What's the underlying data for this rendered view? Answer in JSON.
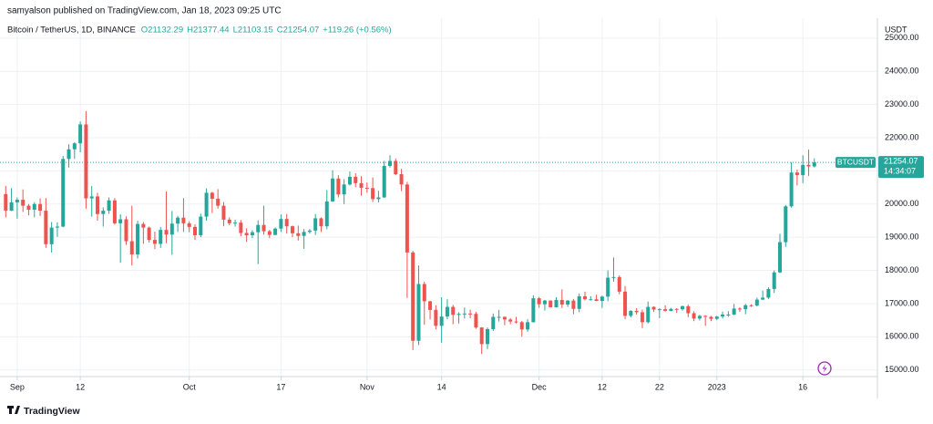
{
  "chart_data": {
    "type": "candlestick",
    "publisher": "samyalson published on TradingView.com, Jan 18, 2023 09:25 UTC",
    "title": "Bitcoin / TetherUS, 1D, BINANCE",
    "legend_values": [
      "O21132.29",
      "H21377.44",
      "L21103.15",
      "C21254.07",
      "+119.26 (+0.56%)"
    ],
    "y_axis_unit": "USDT",
    "symbol_tag": "BTCUSDT",
    "last_price_label": "21254.07",
    "countdown": "14:34:07",
    "brand": "TradingView",
    "up_color": "#26a69a",
    "down_color": "#ef5350",
    "grid": true,
    "ylim": [
      14800,
      25600
    ],
    "yticks": [
      {
        "value": 15000,
        "label": "15000.00"
      },
      {
        "value": 16000,
        "label": "16000.00"
      },
      {
        "value": 17000,
        "label": "17000.00"
      },
      {
        "value": 18000,
        "label": "18000.00"
      },
      {
        "value": 19000,
        "label": "19000.00"
      },
      {
        "value": 20000,
        "label": "20000.00"
      },
      {
        "value": 21000,
        "label": "21000.00"
      },
      {
        "value": 22000,
        "label": "22000.00"
      },
      {
        "value": 23000,
        "label": "23000.00"
      },
      {
        "value": 24000,
        "label": "24000.00"
      },
      {
        "value": 25000,
        "label": "25000.00"
      }
    ],
    "xlim": [
      -1,
      152
    ],
    "xticks": [
      {
        "value": 2,
        "label": "Sep"
      },
      {
        "value": 13,
        "label": "12"
      },
      {
        "value": 32,
        "label": "Oct"
      },
      {
        "value": 48,
        "label": "17"
      },
      {
        "value": 63,
        "label": "Nov"
      },
      {
        "value": 76,
        "label": "14"
      },
      {
        "value": 93,
        "label": "Dec"
      },
      {
        "value": 104,
        "label": "12"
      },
      {
        "value": 114,
        "label": "22"
      },
      {
        "value": 124,
        "label": "2023"
      },
      {
        "value": 139,
        "label": "16"
      }
    ],
    "ohlc": [
      [
        20300,
        20550,
        19600,
        19800
      ],
      [
        19800,
        20480,
        19790,
        20050
      ],
      [
        20050,
        20200,
        19560,
        20130
      ],
      [
        20130,
        20440,
        19760,
        19950
      ],
      [
        19950,
        20000,
        19660,
        19830
      ],
      [
        19830,
        20060,
        19600,
        20000
      ],
      [
        20000,
        20170,
        19640,
        19800
      ],
      [
        19800,
        20180,
        18680,
        18790
      ],
      [
        18790,
        19460,
        18540,
        19290
      ],
      [
        19290,
        19450,
        19010,
        19320
      ],
      [
        19320,
        21450,
        19300,
        21360
      ],
      [
        21360,
        21800,
        21100,
        21650
      ],
      [
        21650,
        21860,
        21360,
        21830
      ],
      [
        21830,
        22490,
        21560,
        22400
      ],
      [
        22400,
        22800,
        19860,
        20170
      ],
      [
        20170,
        20540,
        19620,
        20230
      ],
      [
        20230,
        20340,
        19500,
        19700
      ],
      [
        19700,
        19900,
        19320,
        19800
      ],
      [
        19800,
        20200,
        19700,
        20110
      ],
      [
        20110,
        20180,
        19380,
        19420
      ],
      [
        19420,
        19690,
        18230,
        19540
      ],
      [
        19540,
        19630,
        18770,
        18880
      ],
      [
        18880,
        19950,
        18150,
        18480
      ],
      [
        18480,
        19500,
        18360,
        19400
      ],
      [
        19400,
        19460,
        18800,
        19290
      ],
      [
        19290,
        19320,
        18840,
        18920
      ],
      [
        18920,
        19170,
        18640,
        18800
      ],
      [
        18800,
        19310,
        18680,
        19220
      ],
      [
        19220,
        20380,
        18820,
        19080
      ],
      [
        19080,
        19790,
        18470,
        19410
      ],
      [
        19410,
        19640,
        19160,
        19590
      ],
      [
        19590,
        20180,
        19160,
        19420
      ],
      [
        19420,
        19480,
        19150,
        19310
      ],
      [
        19310,
        19390,
        18920,
        19060
      ],
      [
        19060,
        19710,
        19000,
        19620
      ],
      [
        19620,
        20470,
        19500,
        20340
      ],
      [
        20340,
        20370,
        19730,
        20160
      ],
      [
        20160,
        20450,
        19860,
        19950
      ],
      [
        19950,
        20060,
        19330,
        19530
      ],
      [
        19530,
        19600,
        19360,
        19420
      ],
      [
        19420,
        19530,
        19320,
        19440
      ],
      [
        19440,
        19520,
        19030,
        19130
      ],
      [
        19130,
        19270,
        18860,
        19060
      ],
      [
        19060,
        19210,
        18970,
        19150
      ],
      [
        19150,
        19510,
        18190,
        19370
      ],
      [
        19370,
        19950,
        19080,
        19180
      ],
      [
        19180,
        19220,
        18970,
        19070
      ],
      [
        19070,
        19290,
        19060,
        19260
      ],
      [
        19260,
        19690,
        19160,
        19550
      ],
      [
        19550,
        19700,
        19110,
        19330
      ],
      [
        19330,
        19350,
        19000,
        19120
      ],
      [
        19120,
        19350,
        18900,
        19040
      ],
      [
        19040,
        19250,
        18650,
        19160
      ],
      [
        19160,
        19250,
        19110,
        19200
      ],
      [
        19200,
        19700,
        19070,
        19570
      ],
      [
        19570,
        19600,
        19160,
        19330
      ],
      [
        19330,
        20420,
        19240,
        20080
      ],
      [
        20080,
        21020,
        20060,
        20770
      ],
      [
        20770,
        20870,
        20200,
        20290
      ],
      [
        20290,
        20750,
        20000,
        20590
      ],
      [
        20590,
        20980,
        20560,
        20820
      ],
      [
        20820,
        20930,
        20510,
        20630
      ],
      [
        20630,
        20840,
        20250,
        20490
      ],
      [
        20490,
        20650,
        20340,
        20480
      ],
      [
        20480,
        20800,
        20060,
        20150
      ],
      [
        20150,
        20400,
        20050,
        20200
      ],
      [
        20200,
        21300,
        20190,
        21150
      ],
      [
        21150,
        21470,
        21100,
        21300
      ],
      [
        21300,
        21370,
        20870,
        20900
      ],
      [
        20900,
        21060,
        20390,
        20590
      ],
      [
        20590,
        20670,
        17170,
        18540
      ],
      [
        18540,
        18590,
        15600,
        15880
      ],
      [
        15880,
        18150,
        15750,
        17590
      ],
      [
        17590,
        17660,
        16360,
        17070
      ],
      [
        17070,
        17080,
        16520,
        16810
      ],
      [
        16810,
        16950,
        16220,
        16330
      ],
      [
        16330,
        17190,
        15820,
        16610
      ],
      [
        16610,
        17130,
        16530,
        16900
      ],
      [
        16900,
        16960,
        16380,
        16660
      ],
      [
        16660,
        16740,
        16400,
        16690
      ],
      [
        16690,
        16880,
        16550,
        16700
      ],
      [
        16700,
        16820,
        16560,
        16690
      ],
      [
        16690,
        16750,
        16240,
        16280
      ],
      [
        16280,
        16290,
        15480,
        15780
      ],
      [
        15780,
        16280,
        15630,
        16230
      ],
      [
        16230,
        16700,
        16170,
        16600
      ],
      [
        16600,
        16810,
        16460,
        16600
      ],
      [
        16600,
        16610,
        16350,
        16520
      ],
      [
        16520,
        16560,
        16380,
        16460
      ],
      [
        16460,
        16600,
        16400,
        16440
      ],
      [
        16440,
        16480,
        16000,
        16220
      ],
      [
        16220,
        16530,
        16150,
        16440
      ],
      [
        16440,
        17250,
        16430,
        17160
      ],
      [
        17160,
        17200,
        16870,
        16980
      ],
      [
        16980,
        17110,
        16790,
        17090
      ],
      [
        17090,
        17100,
        16880,
        16890
      ],
      [
        16890,
        17190,
        16880,
        17110
      ],
      [
        17110,
        17430,
        16870,
        16970
      ],
      [
        16970,
        17110,
        16900,
        17090
      ],
      [
        17090,
        17140,
        16680,
        16840
      ],
      [
        16840,
        17300,
        16740,
        17220
      ],
      [
        17220,
        17360,
        17090,
        17130
      ],
      [
        17130,
        17220,
        17090,
        17130
      ],
      [
        17130,
        17270,
        17070,
        17080
      ],
      [
        17080,
        17240,
        16870,
        17210
      ],
      [
        17210,
        18000,
        17070,
        17780
      ],
      [
        17780,
        18390,
        17660,
        17800
      ],
      [
        17800,
        17850,
        17280,
        17360
      ],
      [
        17360,
        17530,
        16530,
        16630
      ],
      [
        16630,
        16800,
        16580,
        16780
      ],
      [
        16780,
        16860,
        16670,
        16740
      ],
      [
        16740,
        16820,
        16260,
        16440
      ],
      [
        16440,
        17060,
        16400,
        16900
      ],
      [
        16900,
        16920,
        16750,
        16820
      ],
      [
        16820,
        16860,
        16560,
        16830
      ],
      [
        16830,
        16950,
        16760,
        16780
      ],
      [
        16780,
        16870,
        16770,
        16840
      ],
      [
        16840,
        16860,
        16720,
        16830
      ],
      [
        16830,
        16940,
        16790,
        16920
      ],
      [
        16920,
        16970,
        16590,
        16710
      ],
      [
        16710,
        16770,
        16470,
        16550
      ],
      [
        16550,
        16660,
        16490,
        16630
      ],
      [
        16630,
        16650,
        16330,
        16600
      ],
      [
        16600,
        16630,
        16470,
        16540
      ],
      [
        16540,
        16630,
        16500,
        16610
      ],
      [
        16610,
        16760,
        16550,
        16670
      ],
      [
        16670,
        16770,
        16600,
        16670
      ],
      [
        16670,
        16990,
        16650,
        16850
      ],
      [
        16850,
        16890,
        16750,
        16830
      ],
      [
        16830,
        16990,
        16680,
        16950
      ],
      [
        16950,
        16980,
        16900,
        16940
      ],
      [
        16940,
        17180,
        16920,
        17120
      ],
      [
        17120,
        17390,
        17110,
        17180
      ],
      [
        17180,
        17490,
        17140,
        17440
      ],
      [
        17440,
        18000,
        17320,
        17940
      ],
      [
        17940,
        19100,
        17920,
        18850
      ],
      [
        18850,
        19970,
        18710,
        19930
      ],
      [
        19930,
        21260,
        19890,
        20950
      ],
      [
        20950,
        21040,
        20560,
        20870
      ],
      [
        20870,
        21470,
        20630,
        21180
      ],
      [
        21180,
        21640,
        20850,
        21132.29
      ],
      [
        21132.29,
        21377.44,
        21103.15,
        21254.07
      ]
    ]
  }
}
